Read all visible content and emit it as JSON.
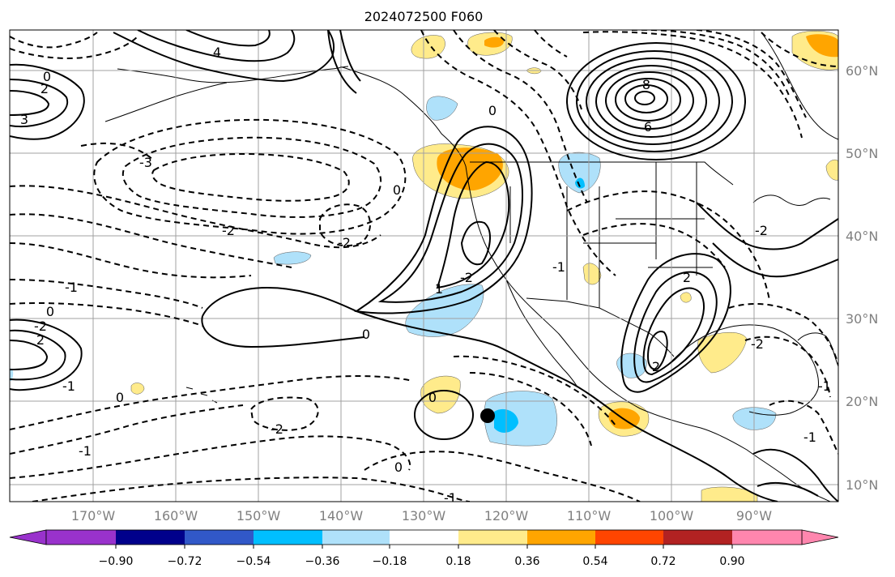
{
  "map": {
    "title": "2024072500 F060",
    "lon_labels": [
      "170°W",
      "160°W",
      "150°W",
      "140°W",
      "130°W",
      "120°W",
      "110°W",
      "100°W",
      "90°W"
    ],
    "lat_labels": [
      "60°N",
      "50°N",
      "40°N",
      "30°N",
      "20°N",
      "10°N"
    ],
    "contour_labels": {
      "l0": "0",
      "l1": "0",
      "l2": "2",
      "l3": "3",
      "l4": "4",
      "l5": "6",
      "l6": "8",
      "l7": "-3",
      "l8": "-2",
      "l9": "-2",
      "l10": "-1",
      "l11": "0",
      "l12": "-2",
      "l13": "2",
      "l14": "-1",
      "l15": "0",
      "l16": "0",
      "l17": "1",
      "l18": "-2",
      "l19": "0",
      "l20": "-2",
      "l21": "0",
      "l22": "2",
      "l23": "2",
      "l24": "-2",
      "l25": "-1",
      "l26": "-1",
      "l27": "0",
      "l28": "-1",
      "l29": "-1",
      "l30": "-2",
      "l31": "-1"
    },
    "marker": {
      "name": "black-dot",
      "color": "#000000"
    }
  },
  "colorbar": {
    "colors": [
      "#9932cc",
      "#00008b",
      "#3158c8",
      "#00bfff",
      "#afe1fa",
      "#ffffff",
      "#ffeb8b",
      "#ffa500",
      "#ff4500",
      "#b22222",
      "#ff86ae"
    ],
    "tick_labels": [
      "−0.90",
      "−0.72",
      "−0.54",
      "−0.36",
      "−0.18",
      "0.18",
      "0.36",
      "0.54",
      "0.72",
      "0.90"
    ]
  }
}
